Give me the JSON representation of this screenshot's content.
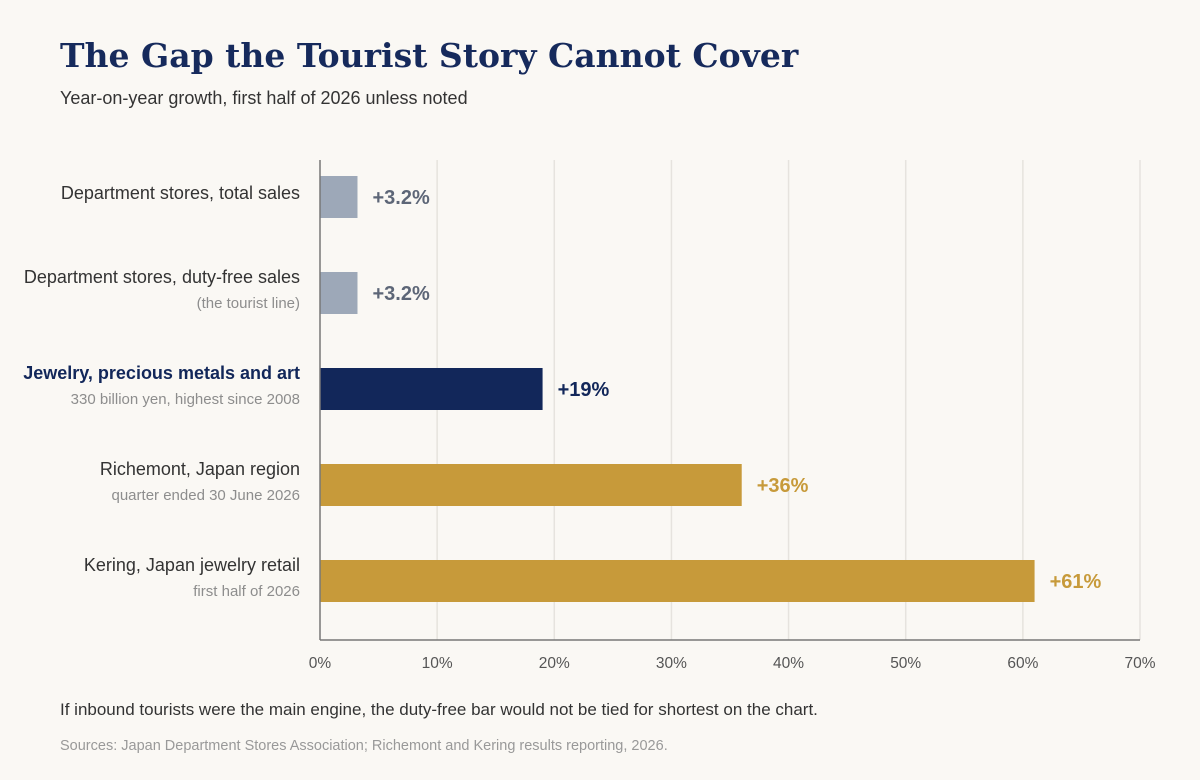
{
  "title": "The Gap the Tourist Story Cannot Cover",
  "subtitle": "Year-on-year growth, first half of 2026 unless noted",
  "footnote": "If inbound tourists were the main engine, the duty-free bar would not be tied for shortest on the chart.",
  "sources": "Sources: Japan Department Stores Association; Richemont and Kering results reporting, 2026.",
  "colors": {
    "neutral": "#9da8b8",
    "neutral_label": "#5d6677",
    "highlight": "#12275a",
    "gold": "#c79a3a",
    "axis": "#777777",
    "grid": "#e6e3de",
    "sublabel": "#8d8d8d",
    "label": "#333333"
  },
  "chart_data": {
    "type": "bar",
    "orientation": "horizontal",
    "title": "The Gap the Tourist Story Cannot Cover",
    "subtitle": "Year-on-year growth, first half of 2026 unless noted",
    "xlim": [
      0,
      70
    ],
    "xticks": [
      0,
      10,
      20,
      30,
      40,
      50,
      60,
      70
    ],
    "xtick_labels": [
      "0%",
      "10%",
      "20%",
      "30%",
      "40%",
      "50%",
      "60%",
      "70%"
    ],
    "grid": "vertical",
    "categories": [
      "Department stores, total sales",
      "Department stores, duty-free sales",
      "Jewelry, precious metals and art",
      "Richemont, Japan region",
      "Kering, Japan jewelry retail"
    ],
    "sublabels": [
      "",
      "(the tourist line)",
      "330 billion yen, highest since 2008",
      "quarter ended 30 June 2026",
      "first half of 2026"
    ],
    "values": [
      3.2,
      3.2,
      19,
      36,
      61
    ],
    "value_labels": [
      "+3.2%",
      "+3.2%",
      "+19%",
      "+36%",
      "+61%"
    ],
    "bar_color_keys": [
      "neutral",
      "neutral",
      "highlight",
      "gold",
      "gold"
    ],
    "emphasized": [
      false,
      false,
      true,
      false,
      false
    ]
  }
}
